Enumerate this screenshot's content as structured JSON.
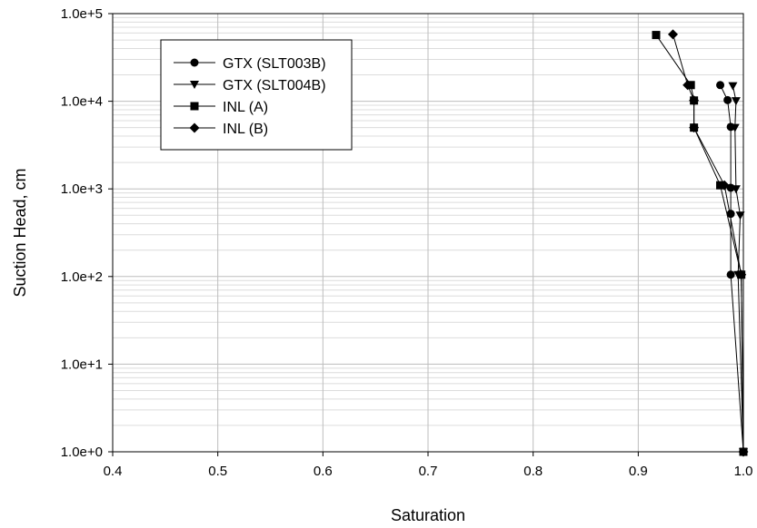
{
  "chart_data": {
    "type": "scatter",
    "xlabel": "Saturation",
    "ylabel": "Suction Head, cm",
    "xlim": [
      0.4,
      1.0
    ],
    "ylim": [
      1,
      100000
    ],
    "y_scale": "log",
    "x_ticks": [
      0.4,
      0.5,
      0.6,
      0.7,
      0.8,
      0.9,
      1.0
    ],
    "x_tick_labels": [
      "0.4",
      "0.5",
      "0.6",
      "0.7",
      "0.8",
      "0.9",
      "1.0"
    ],
    "y_ticks": [
      1,
      10,
      100,
      1000,
      10000,
      100000
    ],
    "y_tick_labels": [
      "1.0e+0",
      "1.0e+1",
      "1.0e+2",
      "1.0e+3",
      "1.0e+4",
      "1.0e+5"
    ],
    "grid": true,
    "legend_position": "top-left",
    "series": [
      {
        "name": "GTX (SLT003B)",
        "marker": "circle",
        "points": [
          [
            1.0,
            1
          ],
          [
            0.988,
            105
          ],
          [
            0.988,
            520
          ],
          [
            0.988,
            1030
          ],
          [
            0.988,
            5100
          ],
          [
            0.985,
            10300
          ],
          [
            0.978,
            15300
          ]
        ]
      },
      {
        "name": "GTX (SLT004B)",
        "marker": "triangle-down",
        "points": [
          [
            1.0,
            1
          ],
          [
            0.995,
            105
          ],
          [
            0.997,
            500
          ],
          [
            0.993,
            1000
          ],
          [
            0.992,
            5000
          ],
          [
            0.993,
            10100
          ],
          [
            0.99,
            15000
          ]
        ]
      },
      {
        "name": "INL (A)",
        "marker": "square",
        "points": [
          [
            1.0,
            1
          ],
          [
            0.998,
            105
          ],
          [
            0.978,
            1100
          ],
          [
            0.953,
            5000
          ],
          [
            0.953,
            10200
          ],
          [
            0.95,
            15300
          ],
          [
            0.917,
            57000
          ]
        ]
      },
      {
        "name": "INL (B)",
        "marker": "diamond",
        "points": [
          [
            1.0,
            1
          ],
          [
            0.998,
            105
          ],
          [
            0.982,
            1100
          ],
          [
            0.953,
            5000
          ],
          [
            0.953,
            10200
          ],
          [
            0.947,
            15300
          ],
          [
            0.933,
            58000
          ]
        ]
      }
    ]
  }
}
